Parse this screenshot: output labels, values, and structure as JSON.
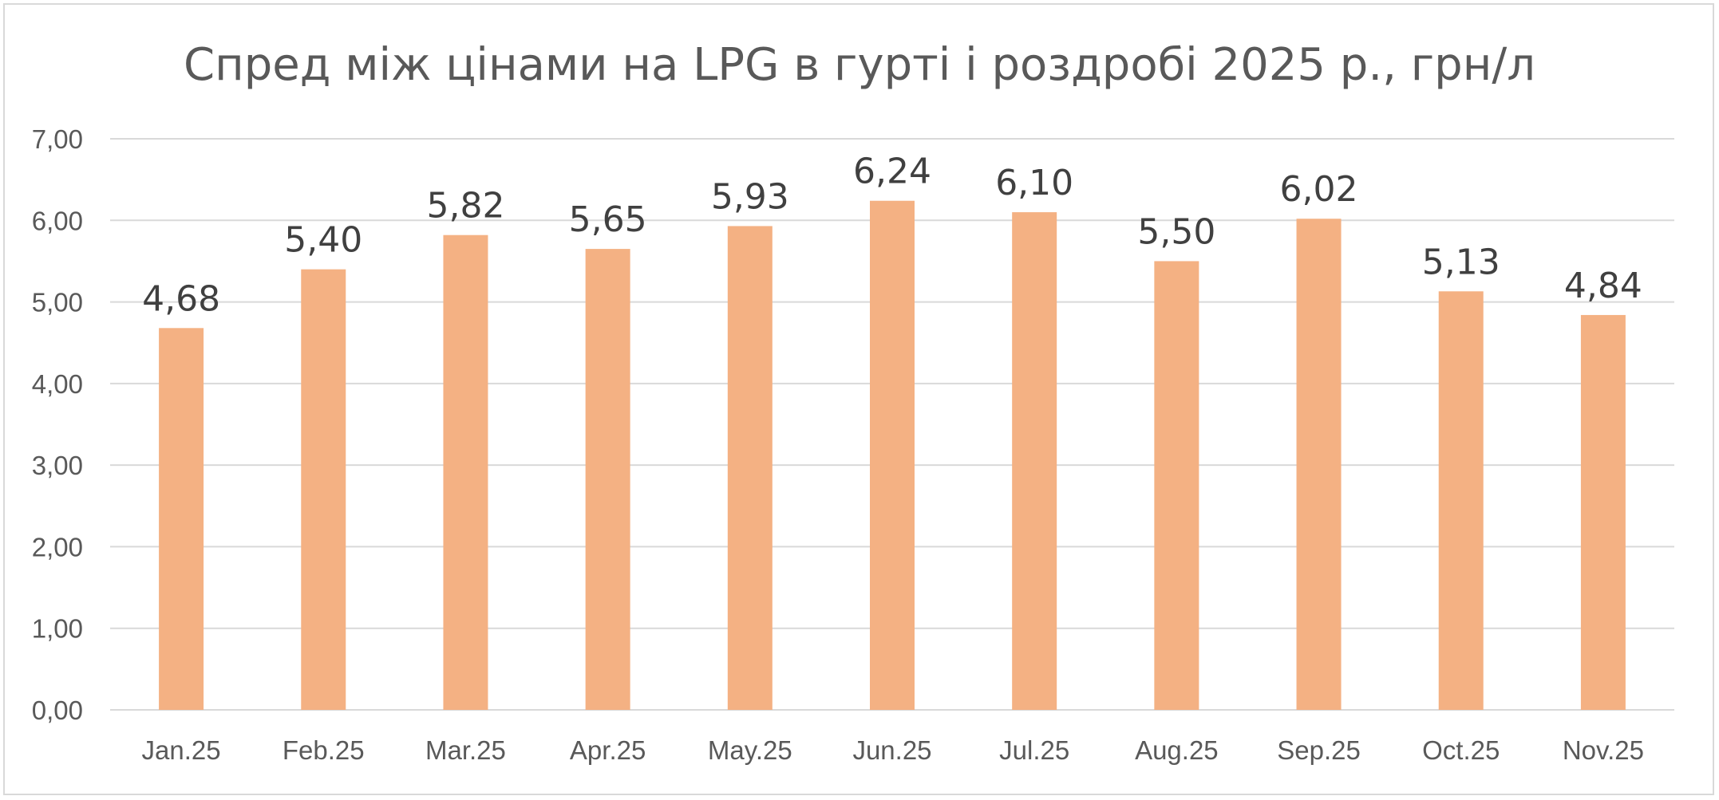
{
  "chart_data": {
    "type": "bar",
    "title": "Спред між цінами на LPG в гурті і роздробі 2025 р., грн/л",
    "xlabel": "",
    "ylabel": "",
    "categories": [
      "Jan.25",
      "Feb.25",
      "Mar.25",
      "Apr.25",
      "May.25",
      "Jun.25",
      "Jul.25",
      "Aug.25",
      "Sep.25",
      "Oct.25",
      "Nov.25"
    ],
    "values": [
      4.68,
      5.4,
      5.82,
      5.65,
      5.93,
      6.24,
      6.1,
      5.5,
      6.02,
      5.13,
      4.84
    ],
    "data_labels": [
      "4,68",
      "5,40",
      "5,82",
      "5,65",
      "5,93",
      "6,24",
      "6,10",
      "5,50",
      "6,02",
      "5,13",
      "4,84"
    ],
    "ylim": [
      0,
      7
    ],
    "yticks": [
      0,
      1,
      2,
      3,
      4,
      5,
      6,
      7
    ],
    "ytick_labels": [
      "0,00",
      "1,00",
      "2,00",
      "3,00",
      "4,00",
      "5,00",
      "6,00",
      "7,00"
    ],
    "grid": true,
    "legend": "none",
    "colors": {
      "bar": "#f4b183",
      "grid": "#d9d9d9",
      "axis_text": "#595959",
      "title_text": "#595959",
      "label_text": "#404040"
    }
  }
}
